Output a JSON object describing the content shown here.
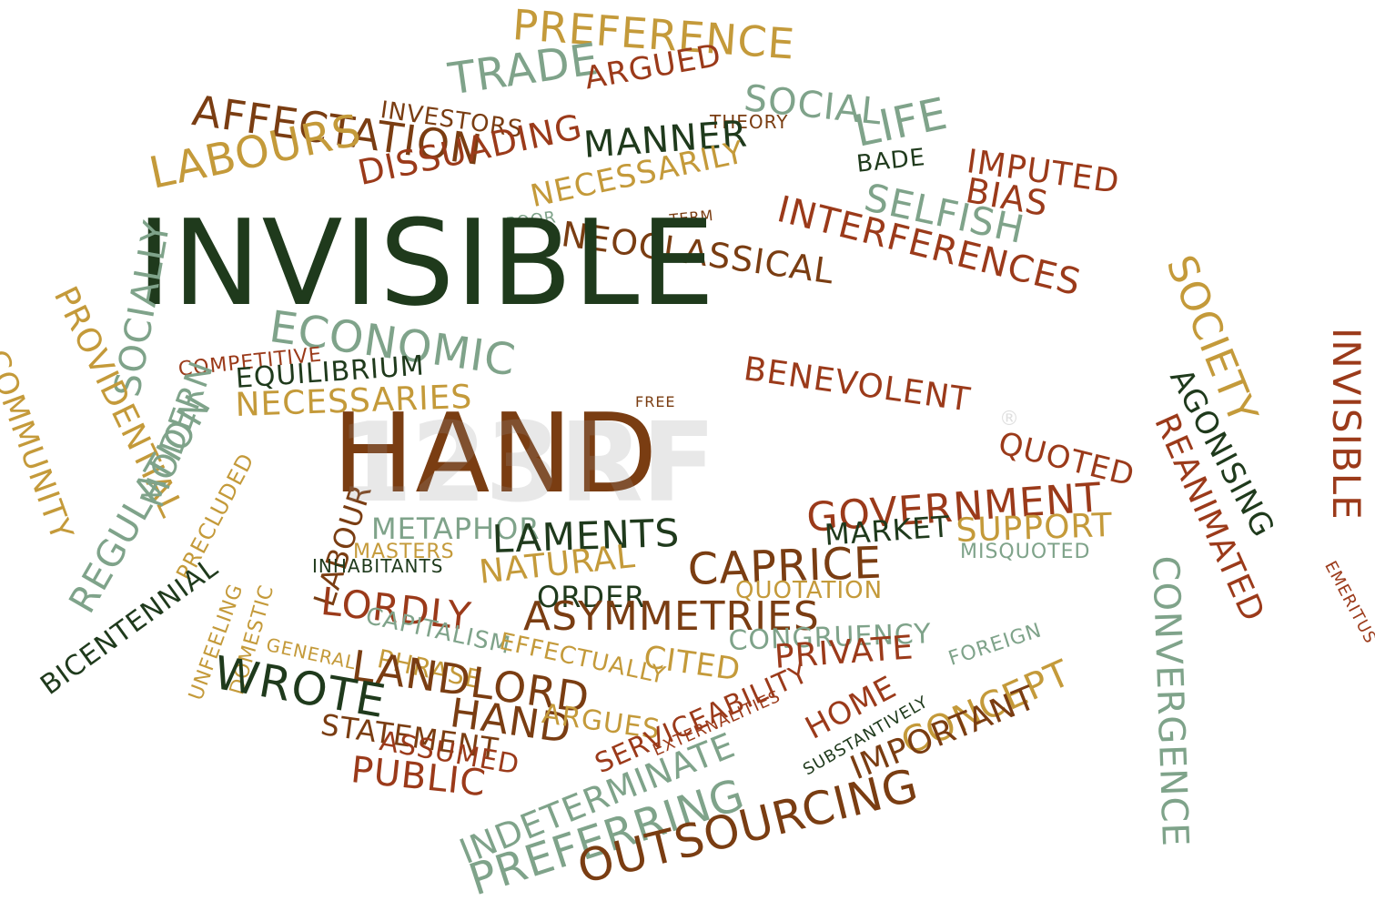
{
  "watermark": "123RF",
  "watermark_mark": "®",
  "words": [
    "PREFERENCE",
    "TRADE",
    "ARGUED",
    "SOCIAL",
    "INVESTORS",
    "THEORY",
    "AFFECTATION",
    "MANNER",
    "LIFE",
    "BADE",
    "IMPUTED",
    "LABOURS",
    "DISSUADING",
    "NECESSARILY",
    "BIAS",
    "SELFISH",
    "INTERFERENCES",
    "TERM",
    "POOR",
    "NEOCLASSICAL",
    "INVISIBLE",
    "SOCIALLY",
    "SOCIETY",
    "ECONOMIC",
    "BENEVOLENT",
    "COMPETITIVE",
    "EQUILIBRIUM",
    "NECESSARIES",
    "FREE",
    "HAND",
    "QUOTED",
    "AGONISING",
    "REANIMATED",
    "INVISIBLE",
    "PROVIDENTIAL",
    "COMMUNITY",
    "MODERN",
    "REGULATION",
    "PRECLUDED",
    "LABOUR",
    "GOVERNMENT",
    "METAPHOR",
    "LAMENTS",
    "MARKET",
    "SUPPORT",
    "MASTERS",
    "INHABITANTS",
    "NATURAL",
    "CAPRICE",
    "MISQUOTED",
    "EMERITUS",
    "ORDER",
    "QUOTATION",
    "LORDLY",
    "ASYMMETRIES",
    "CONVERGENCE",
    "CAPITALISM",
    "EFFECTUALLY",
    "CONGRUENCY",
    "FOREIGN",
    "DOMESTIC",
    "GENERAL",
    "PHRASE",
    "CITED",
    "PRIVATE",
    "BICENTENNIAL",
    "UNFEELING",
    "LANDLORD",
    "WROTE",
    "HAND",
    "ARGUES",
    "SERVICEABILITY",
    "SUBSTANTIVELY",
    "HOME",
    "CONCEPT",
    "STATEMENT",
    "EXTERNALITIES",
    "ASSUMED",
    "IMPORTANT",
    "INDETERMINATE",
    "PUBLIC",
    "PREFERRING",
    "OUTSOURCING"
  ]
}
